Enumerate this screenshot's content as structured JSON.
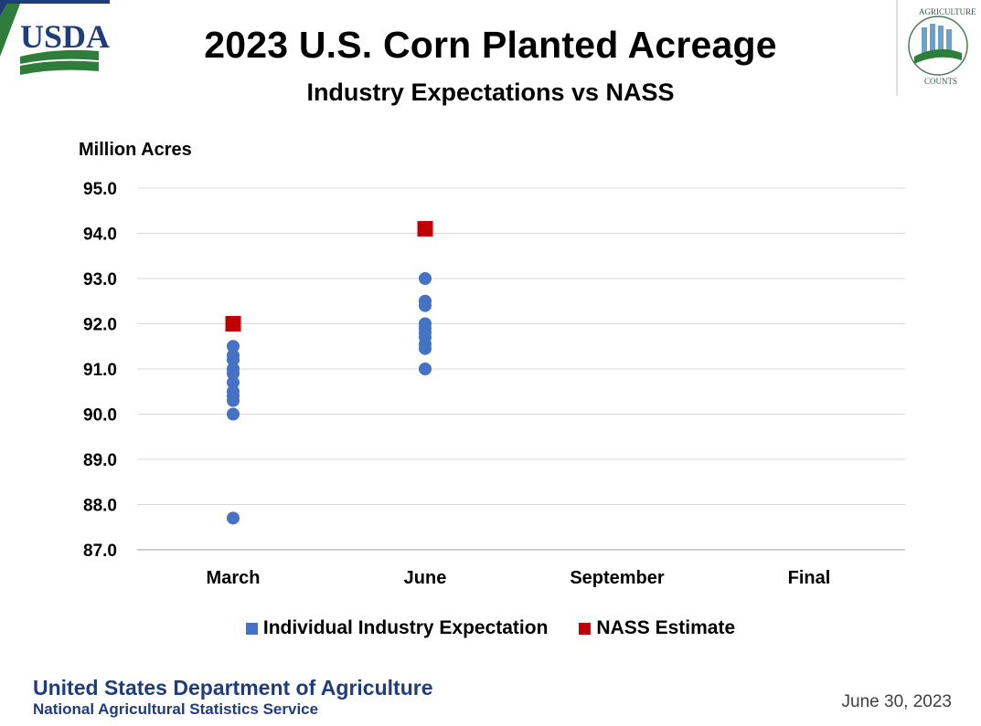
{
  "header": {
    "title": "2023 U.S. Corn Planted Acreage",
    "subtitle": "Industry Expectations vs NASS",
    "usda_logo_text": "USDA",
    "ag_logo_top_text": "AGRICULTURE",
    "ag_logo_bottom_text": "COUNTS"
  },
  "footer": {
    "org": "United States Department of Agriculture",
    "sub": "National Agricultural Statistics Service",
    "date": "June 30, 2023"
  },
  "colors": {
    "expectation": "#4472C4",
    "nass": "#C00000",
    "grid": "#d9d9d9",
    "usda_blue": "#1f3d7a",
    "usda_green": "#2f7d3a"
  },
  "chart_data": {
    "type": "scatter",
    "title": "2023 U.S. Corn Planted Acreage",
    "subtitle": "Industry Expectations vs NASS",
    "ylabel": "Million Acres",
    "xlabel": "",
    "categories": [
      "March",
      "June",
      "September",
      "Final"
    ],
    "ylim": [
      87.0,
      95.0
    ],
    "yticks": [
      "87.0",
      "88.0",
      "89.0",
      "90.0",
      "91.0",
      "92.0",
      "93.0",
      "94.0",
      "95.0"
    ],
    "grid": true,
    "legend_position": "bottom",
    "series": [
      {
        "name": "Individual Industry Expectation",
        "marker": "circle",
        "points": [
          {
            "x": "March",
            "y": 87.7
          },
          {
            "x": "March",
            "y": 90.0
          },
          {
            "x": "March",
            "y": 90.3
          },
          {
            "x": "March",
            "y": 90.4
          },
          {
            "x": "March",
            "y": 90.5
          },
          {
            "x": "March",
            "y": 90.7
          },
          {
            "x": "March",
            "y": 90.9
          },
          {
            "x": "March",
            "y": 91.0
          },
          {
            "x": "March",
            "y": 91.2
          },
          {
            "x": "March",
            "y": 91.3
          },
          {
            "x": "March",
            "y": 91.5
          },
          {
            "x": "June",
            "y": 91.0
          },
          {
            "x": "June",
            "y": 91.45
          },
          {
            "x": "June",
            "y": 91.55
          },
          {
            "x": "June",
            "y": 91.7
          },
          {
            "x": "June",
            "y": 91.8
          },
          {
            "x": "June",
            "y": 91.9
          },
          {
            "x": "June",
            "y": 92.0
          },
          {
            "x": "June",
            "y": 92.4
          },
          {
            "x": "June",
            "y": 92.5
          },
          {
            "x": "June",
            "y": 93.0
          }
        ]
      },
      {
        "name": "NASS Estimate",
        "marker": "square",
        "points": [
          {
            "x": "March",
            "y": 92.0
          },
          {
            "x": "June",
            "y": 94.1
          }
        ]
      }
    ]
  }
}
